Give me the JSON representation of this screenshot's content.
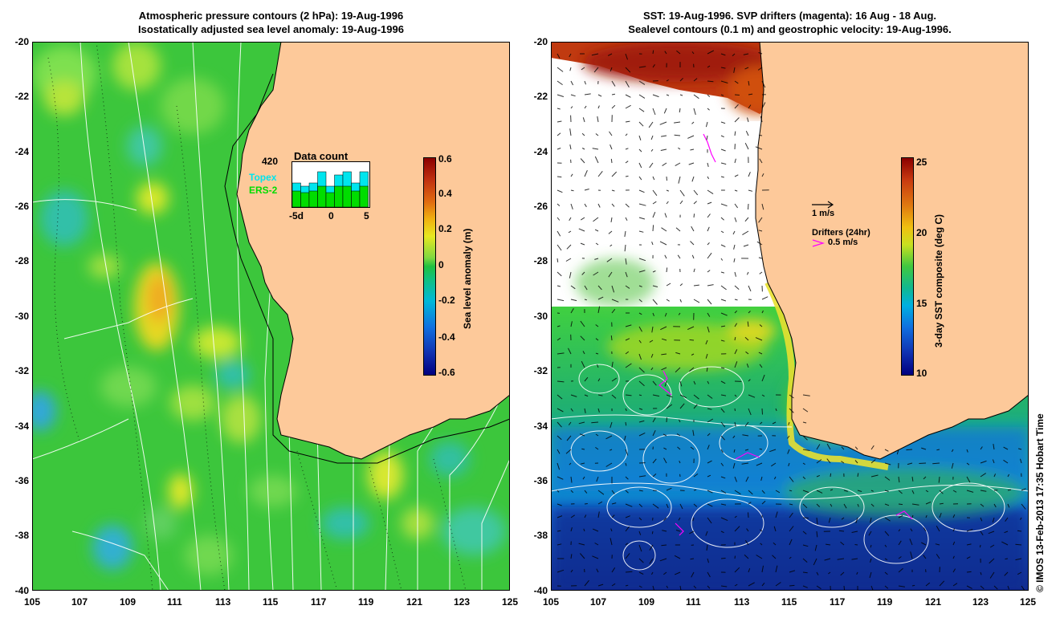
{
  "left_panel": {
    "title_line1": "Atmospheric pressure contours (2 hPa): 19-Aug-1996",
    "title_line2": "Isostatically adjusted sea level anomaly: 19-Aug-1996",
    "colorbar": {
      "label": "Sea level anomaly (m)",
      "ticks": [
        "0.6",
        "0.4",
        "0.2",
        "0",
        "-0.2",
        "-0.4",
        "-0.6"
      ]
    },
    "inset": {
      "title": "Data count",
      "max_label": "420",
      "series": [
        "Topex",
        "ERS-2"
      ],
      "x_ticks": [
        "-5d",
        "0",
        "5"
      ],
      "topex_color": "#00e5ee",
      "ers_color": "#00dd00"
    }
  },
  "right_panel": {
    "title_line1": "SST: 19-Aug-1996. SVP drifters (magenta): 16 Aug - 18 Aug.",
    "title_line2": "Sealevel contours (0.1 m) and geostrophic velocity: 19-Aug-1996.",
    "colorbar": {
      "label": "3-day SST composite (deg C)",
      "ticks": [
        "25",
        "20",
        "15",
        "10"
      ]
    },
    "velocity_legend": "1 m/s",
    "drifter_legend_title": "Drifters (24hr)",
    "drifter_legend_value": "0.5 m/s",
    "drifter_color": "#ff00ff"
  },
  "axes": {
    "y_ticks": [
      "-20",
      "-22",
      "-24",
      "-26",
      "-28",
      "-30",
      "-32",
      "-34",
      "-36",
      "-38",
      "-40"
    ],
    "x_ticks": [
      "105",
      "107",
      "109",
      "111",
      "113",
      "115",
      "117",
      "119",
      "121",
      "123",
      "125"
    ]
  },
  "colors": {
    "land": "#fdc99a",
    "ocean_anomaly_base": "#3cc83c",
    "coastline": "#000000"
  },
  "credit": "© IMOS 13-Feb-2013 17:35 Hobart Time"
}
